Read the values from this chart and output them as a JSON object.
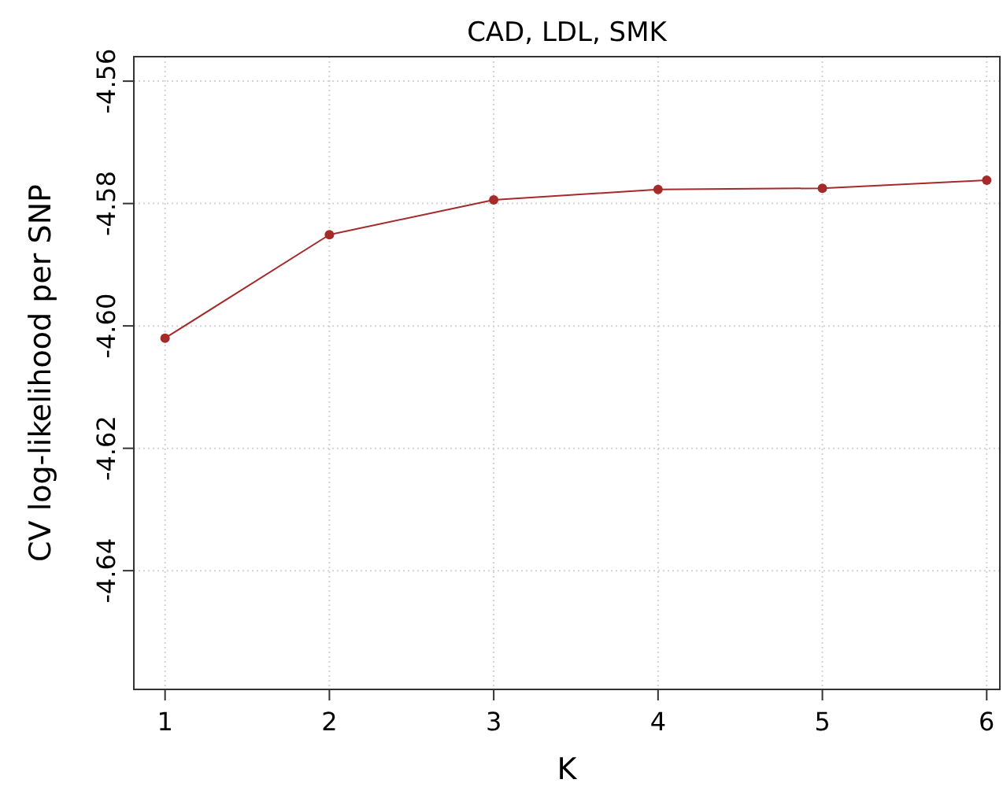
{
  "chart_data": {
    "type": "line",
    "title": "CAD, LDL, SMK",
    "xlabel": "K",
    "ylabel": "CV log-likelihood per SNP",
    "x": [
      1,
      2,
      3,
      4,
      5,
      6
    ],
    "series": [
      {
        "color": "#a52a2a",
        "values": [
          -4.602,
          -4.5851,
          -4.5794,
          -4.5777,
          -4.5775,
          -4.5762
        ]
      }
    ],
    "xlim": [
      0.81,
      6.08
    ],
    "xticks": [
      1,
      2,
      3,
      4,
      5,
      6
    ],
    "ylim": [
      -4.6594,
      -4.556
    ],
    "yticks": [
      {
        "value": -4.56,
        "label": "-4.56"
      },
      {
        "value": -4.58,
        "label": "-4.58"
      },
      {
        "value": -4.6,
        "label": "-4.60"
      },
      {
        "value": -4.62,
        "label": "-4.62"
      },
      {
        "value": -4.64,
        "label": "-4.64"
      }
    ],
    "grid": true,
    "marker": "circle",
    "line_style": "solid"
  }
}
